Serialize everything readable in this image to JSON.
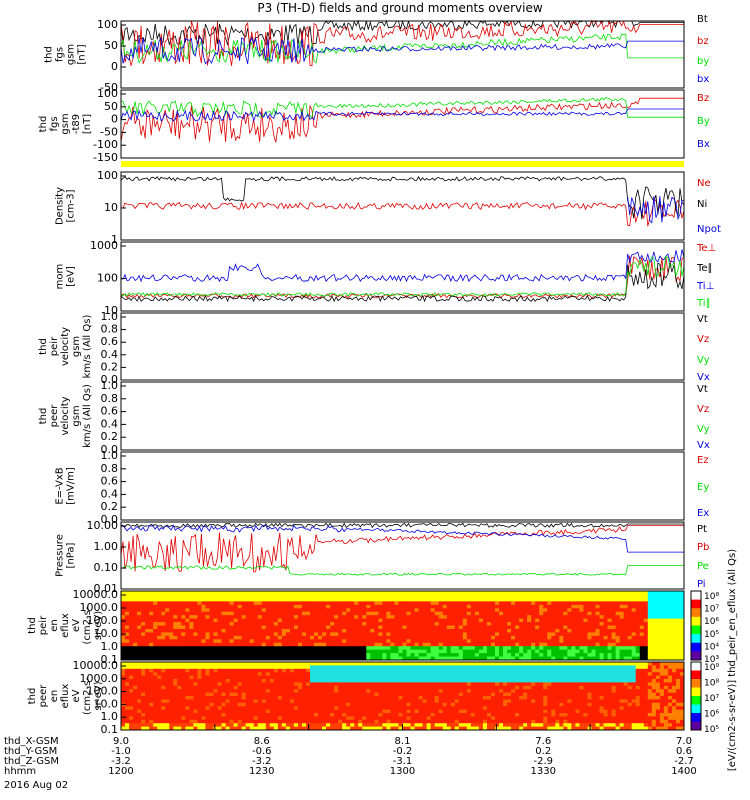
{
  "title": "P3 (TH-D) fields and ground moments overview",
  "colors": {
    "black": "#000000",
    "red": "#e00000",
    "green": "#00e000",
    "blue": "#0000e0",
    "yellow": "#ffff00",
    "frame": "#000000"
  },
  "xaxis": {
    "tick_fracs": [
      0,
      0.1667,
      0.3333,
      0.5,
      0.6667,
      0.8333,
      1
    ],
    "rows": [
      {
        "label": "thd_X-GSM",
        "values": [
          "9.0",
          "8.6",
          "8.1",
          "7.6",
          "7.0"
        ]
      },
      {
        "label": "thd_Y-GSM",
        "values": [
          "-1.0",
          "-0.6",
          "-0.2",
          "0.2",
          "0.6"
        ]
      },
      {
        "label": "thd_Z-GSM",
        "values": [
          "-3.2",
          "-3.2",
          "-3.1",
          "-2.9",
          "-2.7"
        ]
      },
      {
        "label": "hhmm",
        "values": [
          "1200",
          "1230",
          "1300",
          "1330",
          "1400"
        ]
      }
    ],
    "date": "2016 Aug 02"
  },
  "chart_data": [
    {
      "type": "line",
      "ylabel": [
        "thd",
        "fgs",
        "gsm",
        "[nT]"
      ],
      "yticks": [
        "100",
        "50",
        "0",
        "-50"
      ],
      "ylim": [
        -70,
        100
      ],
      "series": [
        {
          "name": "Bt",
          "color": "black"
        },
        {
          "name": "bz",
          "color": "red"
        },
        {
          "name": "by",
          "color": "green"
        },
        {
          "name": "bx",
          "color": "blue"
        }
      ]
    },
    {
      "type": "line",
      "ylabel": [
        "thd",
        "fgs",
        "gsm",
        "-t89",
        "[nT]"
      ],
      "yticks": [
        "100",
        "50",
        "0",
        "-50",
        "-100",
        "-150"
      ],
      "ylim": [
        -170,
        100
      ],
      "series": [
        {
          "name": "Bz",
          "color": "red"
        },
        {
          "name": "By",
          "color": "green"
        },
        {
          "name": "Bx",
          "color": "blue"
        }
      ]
    },
    {
      "type": "bar",
      "note": "yellow status bar"
    },
    {
      "type": "line",
      "ylabel": [
        "Density",
        "[cm-3]"
      ],
      "yticks": [
        "100",
        "10",
        "1"
      ],
      "log": true,
      "series": [
        {
          "name": "Ne",
          "color": "red"
        },
        {
          "name": "Ni",
          "color": "black"
        },
        {
          "name": "Npot",
          "color": "blue"
        }
      ]
    },
    {
      "type": "line",
      "ylabel": [
        "mom",
        "[eV]"
      ],
      "yticks": [
        "1000",
        "100",
        "10"
      ],
      "log": true,
      "series": [
        {
          "name": "Te⊥",
          "color": "red"
        },
        {
          "name": "Te∥",
          "color": "black"
        },
        {
          "name": "Ti⊥",
          "color": "blue"
        },
        {
          "name": "Ti∥",
          "color": "green"
        }
      ]
    },
    {
      "type": "line",
      "ylabel": [
        "thd",
        "peir",
        "velocity",
        "gsm",
        "km/s (All Qs)"
      ],
      "yticks": [
        "1.0",
        "0.8",
        "0.6",
        "0.4",
        "0.2",
        "0.0"
      ],
      "series": [
        {
          "name": "Vt",
          "color": "black"
        },
        {
          "name": "Vz",
          "color": "red"
        },
        {
          "name": "Vy",
          "color": "green"
        },
        {
          "name": "Vx",
          "color": "blue"
        }
      ]
    },
    {
      "type": "line",
      "ylabel": [
        "thd",
        "peer",
        "velocity",
        "gsm",
        "km/s (All Qs)"
      ],
      "yticks": [
        "1.0",
        "0.8",
        "0.6",
        "0.4",
        "0.2",
        "0.0"
      ],
      "series": [
        {
          "name": "Vt",
          "color": "black"
        },
        {
          "name": "Vz",
          "color": "red"
        },
        {
          "name": "Vy",
          "color": "green"
        },
        {
          "name": "Vx",
          "color": "blue"
        }
      ]
    },
    {
      "type": "line",
      "ylabel": [
        "E=-VxB",
        "[mV/m]"
      ],
      "yticks": [
        "1.0",
        "0.8",
        "0.6",
        "0.4",
        "0.2",
        "0.0"
      ],
      "series": [
        {
          "name": "Ez",
          "color": "red"
        },
        {
          "name": "Ey",
          "color": "green"
        },
        {
          "name": "Ex",
          "color": "blue"
        }
      ]
    },
    {
      "type": "line",
      "ylabel": [
        "Pressure",
        "[nPa]"
      ],
      "yticks": [
        "10.00",
        "1.00",
        "0.10",
        "0.01"
      ],
      "log": true,
      "series": [
        {
          "name": "Pt",
          "color": "black"
        },
        {
          "name": "Pb",
          "color": "red"
        },
        {
          "name": "Pe",
          "color": "green"
        },
        {
          "name": "Pi",
          "color": "blue"
        }
      ]
    },
    {
      "type": "heatmap",
      "ylabel": [
        "thd",
        "peir",
        "en",
        "eflux",
        "eV",
        "(cm2-s-",
        "sr-eV)"
      ],
      "yticks": [
        "10000.0",
        "1000.0",
        "100.0",
        "10.0",
        "1.0",
        "0.1"
      ],
      "colorbar_ticks": [
        "10⁸",
        "10⁷",
        "10⁶",
        "10⁵",
        "10⁴",
        "10³"
      ]
    },
    {
      "type": "heatmap",
      "ylabel": [
        "thd",
        "peer",
        "en",
        "eflux",
        "eV",
        "(cm2-s-",
        "sr-eV)"
      ],
      "yticks": [
        "10000.0",
        "1000.0",
        "100.0",
        "10.0",
        "1.0",
        "0.1"
      ],
      "colorbar_ticks": [
        "10⁹",
        "10⁸",
        "10⁷",
        "10⁶",
        "10⁵"
      ]
    }
  ],
  "colorbar_label": "[eV/(cm2-s-sr-eV)] thd_peir_en_eflux (All Qs)"
}
